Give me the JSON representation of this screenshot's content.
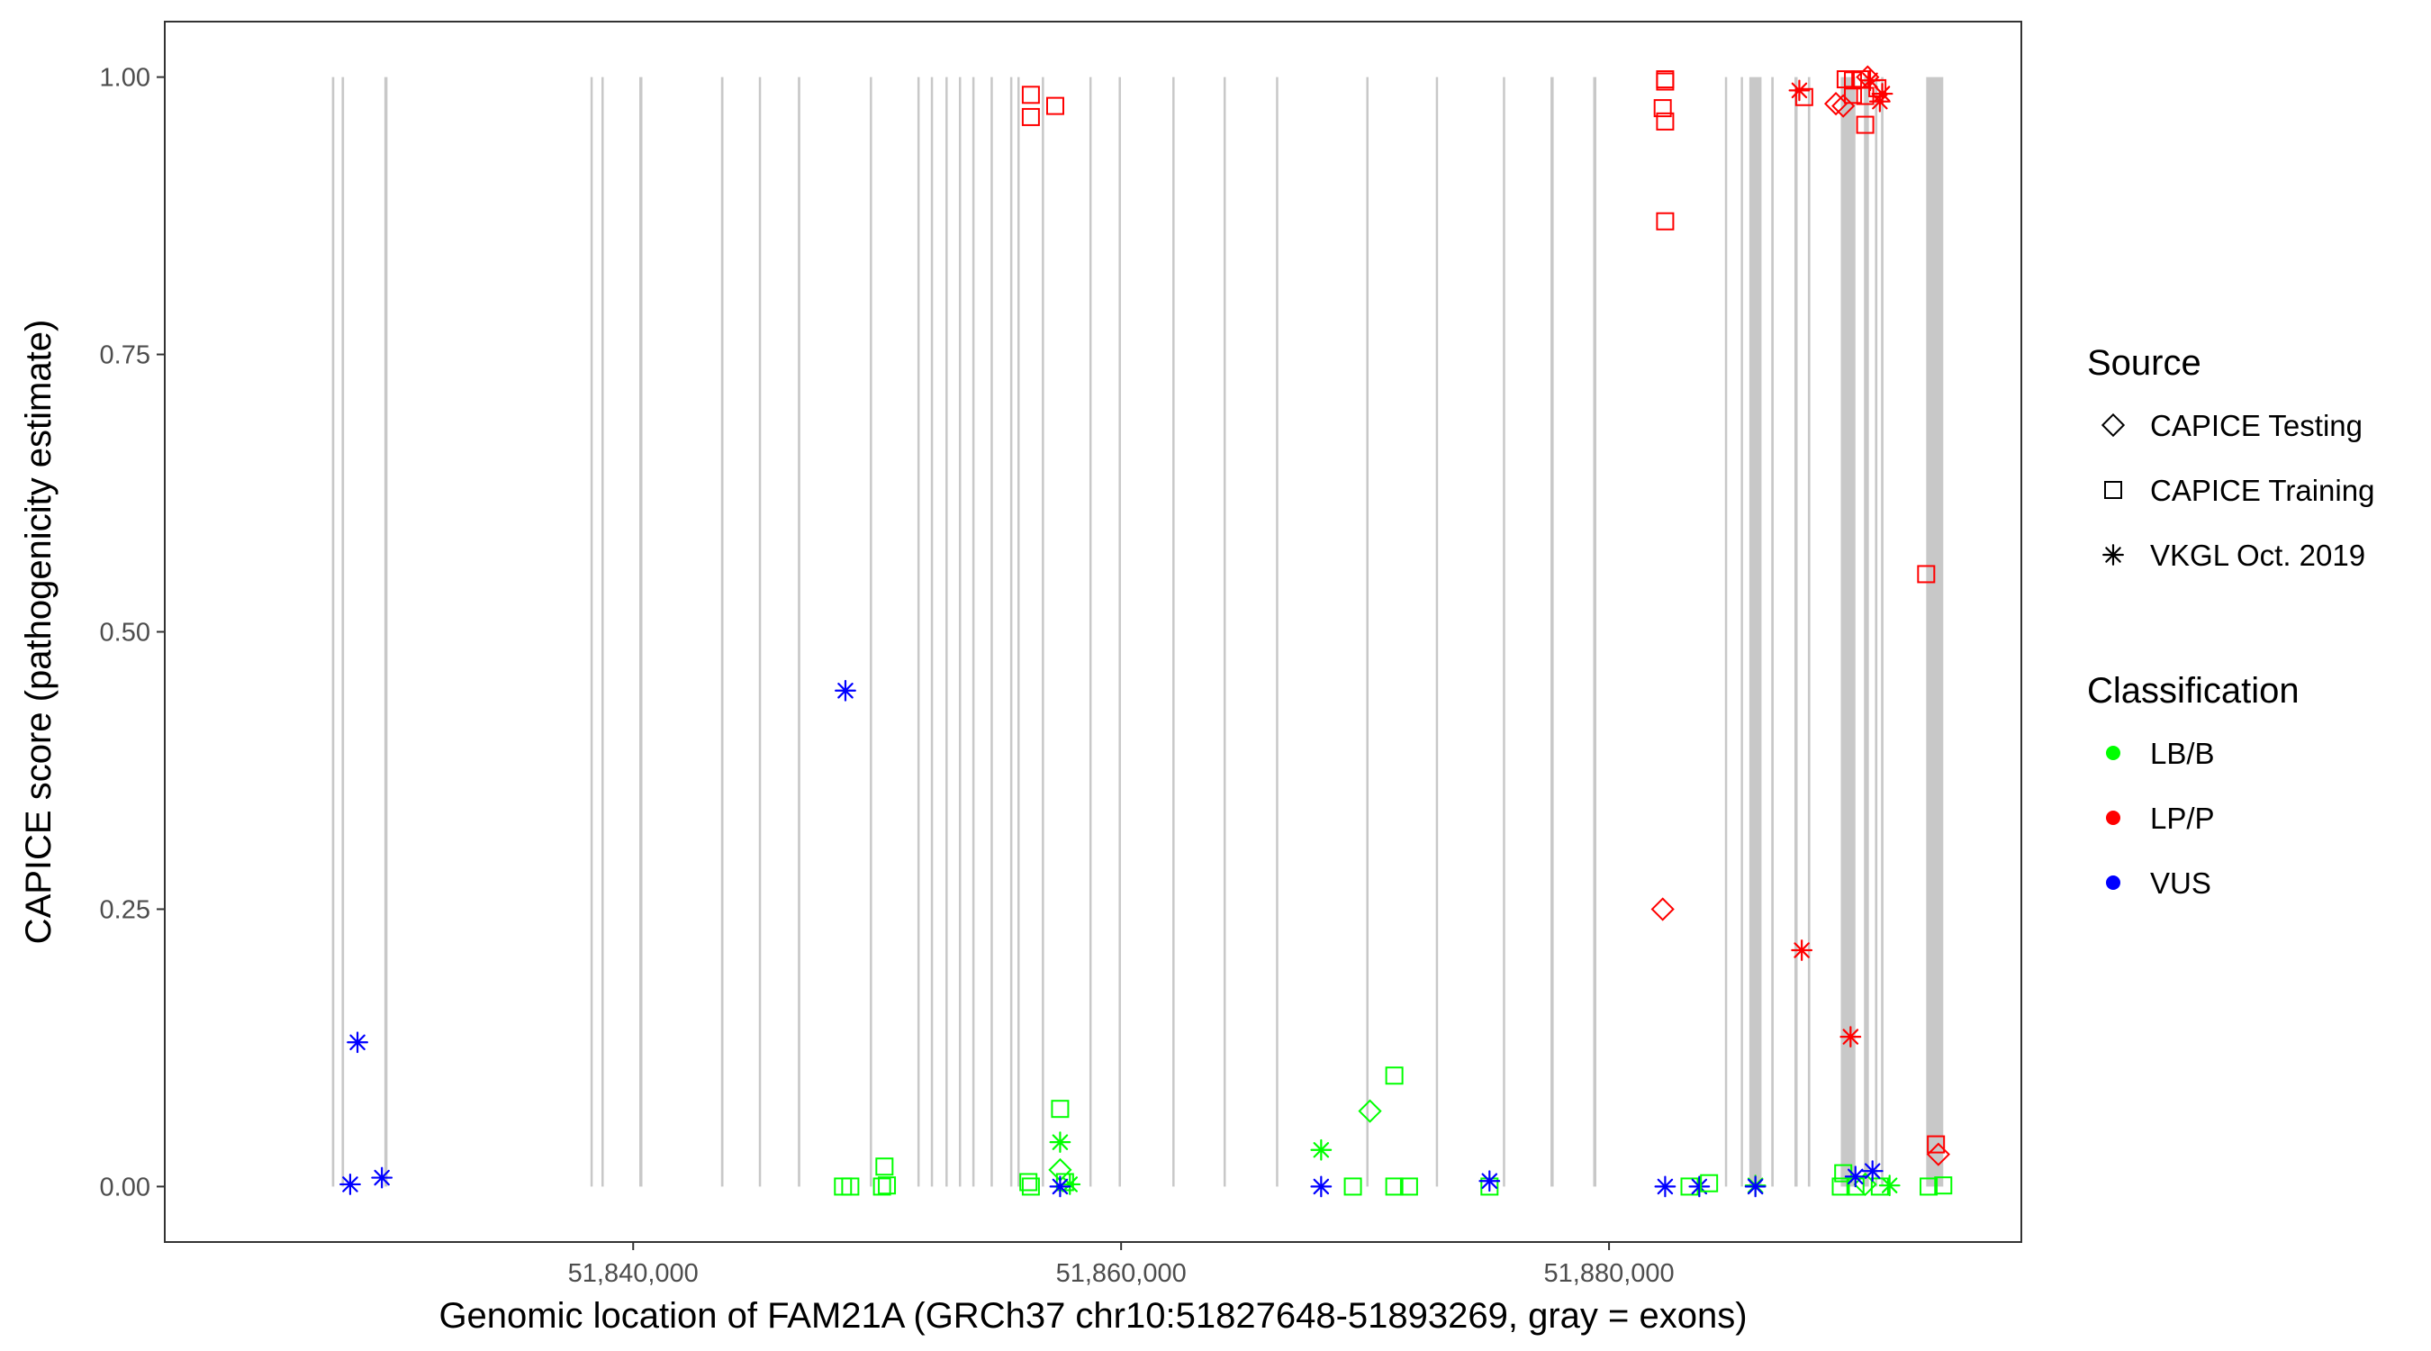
{
  "chart_data": {
    "type": "scatter",
    "title": "",
    "xlabel": "Genomic location of FAM21A (GRCh37 chr10:51827648-51893269, gray = exons)",
    "ylabel": "CAPICE score (pathogenicity estimate)",
    "xlim": [
      51820800,
      51896900
    ],
    "ylim": [
      -0.05,
      1.05
    ],
    "x_ticks": [
      51840000,
      51860000,
      51880000
    ],
    "x_tick_labels": [
      "51,840,000",
      "51,860,000",
      "51,880,000"
    ],
    "y_ticks": [
      0,
      0.25,
      0.5,
      0.75,
      1.0
    ],
    "y_tick_labels": [
      "0.00",
      "0.25",
      "0.50",
      "0.75",
      "1.00"
    ],
    "grid": false,
    "legend_position": "right",
    "exons": [
      [
        51827650,
        51827750
      ],
      [
        51828050,
        51828150
      ],
      [
        51829800,
        51829930
      ],
      [
        51838250,
        51838330
      ],
      [
        51838700,
        51838770
      ],
      [
        51840250,
        51840380
      ],
      [
        51843600,
        51843700
      ],
      [
        51845150,
        51845230
      ],
      [
        51846750,
        51846850
      ],
      [
        51849700,
        51849770
      ],
      [
        51851650,
        51851730
      ],
      [
        51852200,
        51852280
      ],
      [
        51852800,
        51852880
      ],
      [
        51853350,
        51853430
      ],
      [
        51853900,
        51853980
      ],
      [
        51854650,
        51854730
      ],
      [
        51855450,
        51855530
      ],
      [
        51855750,
        51855830
      ],
      [
        51856750,
        51856830
      ],
      [
        51858700,
        51858780
      ],
      [
        51859900,
        51859980
      ],
      [
        51862100,
        51862180
      ],
      [
        51864200,
        51864280
      ],
      [
        51866350,
        51866430
      ],
      [
        51870050,
        51870130
      ],
      [
        51872900,
        51872980
      ],
      [
        51875650,
        51875730
      ],
      [
        51877600,
        51877730
      ],
      [
        51879350,
        51879480
      ],
      [
        51884750,
        51884830
      ],
      [
        51885400,
        51885480
      ],
      [
        51885750,
        51886250
      ],
      [
        51886650,
        51886750
      ],
      [
        51887600,
        51887730
      ],
      [
        51888150,
        51888250
      ],
      [
        51889500,
        51890100
      ],
      [
        51890450,
        51890650
      ],
      [
        51890900,
        51891000
      ],
      [
        51891150,
        51891250
      ],
      [
        51893000,
        51893700
      ]
    ],
    "sources": [
      {
        "name": "CAPICE Testing",
        "shape": "diamond"
      },
      {
        "name": "CAPICE Training",
        "shape": "square"
      },
      {
        "name": "VKGL Oct. 2019",
        "shape": "asterisk"
      }
    ],
    "classifications": [
      {
        "name": "LB/B",
        "color": "#00ff00"
      },
      {
        "name": "LP/P",
        "color": "#ff0000"
      },
      {
        "name": "VUS",
        "color": "#0000ff"
      }
    ],
    "points": [
      {
        "x": 51828700,
        "y": 0.13,
        "source": "VKGL Oct. 2019",
        "class": "VUS"
      },
      {
        "x": 51828400,
        "y": 0.002,
        "source": "VKGL Oct. 2019",
        "class": "VUS"
      },
      {
        "x": 51829700,
        "y": 0.008,
        "source": "VKGL Oct. 2019",
        "class": "VUS"
      },
      {
        "x": 51848700,
        "y": 0.447,
        "source": "VKGL Oct. 2019",
        "class": "VUS"
      },
      {
        "x": 51848600,
        "y": 0.0,
        "source": "CAPICE Training",
        "class": "LB/B"
      },
      {
        "x": 51848900,
        "y": 0.0,
        "source": "CAPICE Training",
        "class": "LB/B"
      },
      {
        "x": 51850300,
        "y": 0.018,
        "source": "CAPICE Training",
        "class": "LB/B"
      },
      {
        "x": 51850200,
        "y": 0.0,
        "source": "CAPICE Training",
        "class": "LB/B"
      },
      {
        "x": 51850400,
        "y": 0.001,
        "source": "CAPICE Training",
        "class": "LB/B"
      },
      {
        "x": 51856300,
        "y": 0.984,
        "source": "CAPICE Training",
        "class": "LP/P"
      },
      {
        "x": 51856300,
        "y": 0.964,
        "source": "CAPICE Training",
        "class": "LP/P"
      },
      {
        "x": 51857300,
        "y": 0.974,
        "source": "CAPICE Training",
        "class": "LP/P"
      },
      {
        "x": 51857500,
        "y": 0.07,
        "source": "CAPICE Training",
        "class": "LB/B"
      },
      {
        "x": 51857500,
        "y": 0.04,
        "source": "VKGL Oct. 2019",
        "class": "LB/B"
      },
      {
        "x": 51857500,
        "y": 0.015,
        "source": "CAPICE Testing",
        "class": "LB/B"
      },
      {
        "x": 51856200,
        "y": 0.004,
        "source": "CAPICE Training",
        "class": "LB/B"
      },
      {
        "x": 51856300,
        "y": 0.0,
        "source": "CAPICE Training",
        "class": "LB/B"
      },
      {
        "x": 51857700,
        "y": 0.004,
        "source": "CAPICE Training",
        "class": "LB/B"
      },
      {
        "x": 51857900,
        "y": 0.002,
        "source": "VKGL Oct. 2019",
        "class": "LB/B"
      },
      {
        "x": 51857500,
        "y": 0.0,
        "source": "VKGL Oct. 2019",
        "class": "VUS"
      },
      {
        "x": 51868200,
        "y": 0.033,
        "source": "VKGL Oct. 2019",
        "class": "LB/B"
      },
      {
        "x": 51868200,
        "y": 0.0,
        "source": "VKGL Oct. 2019",
        "class": "VUS"
      },
      {
        "x": 51869500,
        "y": 0.0,
        "source": "CAPICE Training",
        "class": "LB/B"
      },
      {
        "x": 51870200,
        "y": 0.068,
        "source": "CAPICE Testing",
        "class": "LB/B"
      },
      {
        "x": 51871200,
        "y": 0.1,
        "source": "CAPICE Training",
        "class": "LB/B"
      },
      {
        "x": 51871200,
        "y": 0.0,
        "source": "CAPICE Training",
        "class": "LB/B"
      },
      {
        "x": 51871800,
        "y": 0.0,
        "source": "CAPICE Training",
        "class": "LB/B"
      },
      {
        "x": 51875100,
        "y": 0.0,
        "source": "CAPICE Training",
        "class": "LB/B"
      },
      {
        "x": 51875100,
        "y": 0.005,
        "source": "VKGL Oct. 2019",
        "class": "VUS"
      },
      {
        "x": 51882300,
        "y": 0.998,
        "source": "CAPICE Training",
        "class": "LP/P"
      },
      {
        "x": 51882300,
        "y": 0.996,
        "source": "CAPICE Training",
        "class": "LP/P"
      },
      {
        "x": 51882200,
        "y": 0.972,
        "source": "CAPICE Training",
        "class": "LP/P"
      },
      {
        "x": 51882300,
        "y": 0.96,
        "source": "CAPICE Training",
        "class": "LP/P"
      },
      {
        "x": 51882300,
        "y": 0.87,
        "source": "CAPICE Training",
        "class": "LP/P"
      },
      {
        "x": 51882200,
        "y": 0.25,
        "source": "CAPICE Testing",
        "class": "LP/P"
      },
      {
        "x": 51882300,
        "y": 0.0,
        "source": "VKGL Oct. 2019",
        "class": "VUS"
      },
      {
        "x": 51883300,
        "y": 0.0,
        "source": "CAPICE Training",
        "class": "LB/B"
      },
      {
        "x": 51883700,
        "y": 0.0,
        "source": "VKGL Oct. 2019",
        "class": "VUS"
      },
      {
        "x": 51884100,
        "y": 0.003,
        "source": "CAPICE Training",
        "class": "LB/B"
      },
      {
        "x": 51886000,
        "y": 0.001,
        "source": "VKGL Oct. 2019",
        "class": "LB/B"
      },
      {
        "x": 51886000,
        "y": 0.0,
        "source": "VKGL Oct. 2019",
        "class": "VUS"
      },
      {
        "x": 51887800,
        "y": 0.988,
        "source": "VKGL Oct. 2019",
        "class": "LP/P"
      },
      {
        "x": 51888000,
        "y": 0.982,
        "source": "CAPICE Training",
        "class": "LP/P"
      },
      {
        "x": 51887900,
        "y": 0.213,
        "source": "VKGL Oct. 2019",
        "class": "LP/P"
      },
      {
        "x": 51889900,
        "y": 0.135,
        "source": "VKGL Oct. 2019",
        "class": "LP/P"
      },
      {
        "x": 51889600,
        "y": 0.974,
        "source": "CAPICE Testing",
        "class": "LP/P"
      },
      {
        "x": 51889300,
        "y": 0.976,
        "source": "CAPICE Testing",
        "class": "LP/P"
      },
      {
        "x": 51889700,
        "y": 0.998,
        "source": "CAPICE Training",
        "class": "LP/P"
      },
      {
        "x": 51890000,
        "y": 0.997,
        "source": "CAPICE Training",
        "class": "LP/P"
      },
      {
        "x": 51890300,
        "y": 0.998,
        "source": "CAPICE Training",
        "class": "LP/P"
      },
      {
        "x": 51890600,
        "y": 1.0,
        "source": "CAPICE Testing",
        "class": "LP/P"
      },
      {
        "x": 51890000,
        "y": 0.984,
        "source": "CAPICE Training",
        "class": "LP/P"
      },
      {
        "x": 51890500,
        "y": 0.983,
        "source": "CAPICE Training",
        "class": "LP/P"
      },
      {
        "x": 51890500,
        "y": 0.957,
        "source": "CAPICE Training",
        "class": "LP/P"
      },
      {
        "x": 51891000,
        "y": 0.99,
        "source": "CAPICE Training",
        "class": "LP/P"
      },
      {
        "x": 51891200,
        "y": 0.985,
        "source": "VKGL Oct. 2019",
        "class": "LP/P"
      },
      {
        "x": 51891100,
        "y": 0.978,
        "source": "VKGL Oct. 2019",
        "class": "LP/P"
      },
      {
        "x": 51890700,
        "y": 0.997,
        "source": "VKGL Oct. 2019",
        "class": "LP/P"
      },
      {
        "x": 51889600,
        "y": 0.012,
        "source": "CAPICE Training",
        "class": "LB/B"
      },
      {
        "x": 51889500,
        "y": 0.0,
        "source": "CAPICE Training",
        "class": "LB/B"
      },
      {
        "x": 51890100,
        "y": 0.0,
        "source": "CAPICE Training",
        "class": "LB/B"
      },
      {
        "x": 51890500,
        "y": 0.002,
        "source": "CAPICE Testing",
        "class": "LB/B"
      },
      {
        "x": 51891100,
        "y": 0.0,
        "source": "CAPICE Training",
        "class": "LB/B"
      },
      {
        "x": 51891500,
        "y": 0.001,
        "source": "VKGL Oct. 2019",
        "class": "LB/B"
      },
      {
        "x": 51890100,
        "y": 0.009,
        "source": "VKGL Oct. 2019",
        "class": "VUS"
      },
      {
        "x": 51890800,
        "y": 0.014,
        "source": "VKGL Oct. 2019",
        "class": "VUS"
      },
      {
        "x": 51893000,
        "y": 0.552,
        "source": "CAPICE Training",
        "class": "LP/P"
      },
      {
        "x": 51893400,
        "y": 0.038,
        "source": "CAPICE Training",
        "class": "LP/P"
      },
      {
        "x": 51893500,
        "y": 0.029,
        "source": "CAPICE Testing",
        "class": "LP/P"
      },
      {
        "x": 51893100,
        "y": 0.0,
        "source": "CAPICE Training",
        "class": "LB/B"
      },
      {
        "x": 51893700,
        "y": 0.001,
        "source": "CAPICE Training",
        "class": "LB/B"
      }
    ]
  },
  "legend": {
    "source_title": "Source",
    "classification_title": "Classification",
    "source_items": [
      {
        "label": "CAPICE Testing",
        "shape": "diamond"
      },
      {
        "label": "CAPICE Training",
        "shape": "square"
      },
      {
        "label": "VKGL Oct. 2019",
        "shape": "asterisk"
      }
    ],
    "classification_items": [
      {
        "label": "LB/B",
        "color": "#00ff00"
      },
      {
        "label": "LP/P",
        "color": "#ff0000"
      },
      {
        "label": "VUS",
        "color": "#0000ff"
      }
    ]
  }
}
